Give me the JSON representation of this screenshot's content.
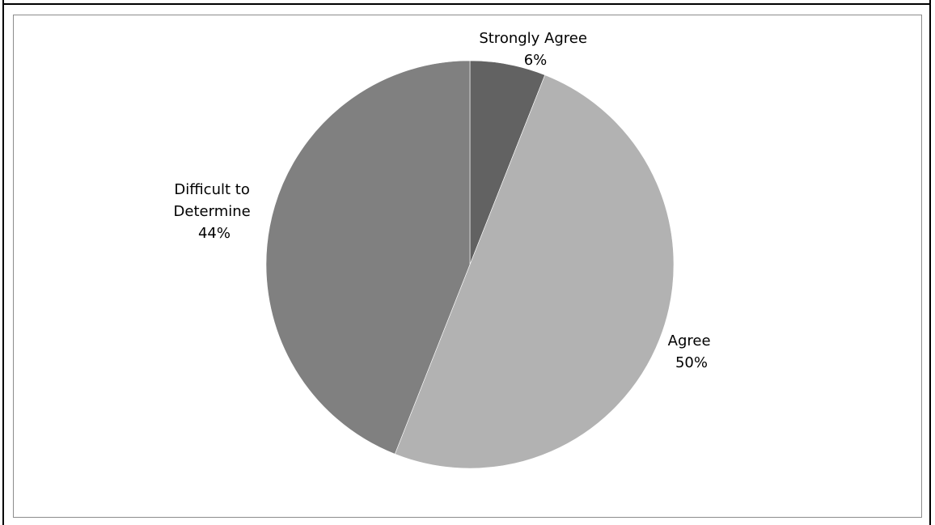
{
  "chart_data": {
    "type": "pie",
    "start_angle_deg": 0,
    "direction": "clockwise",
    "slices": [
      {
        "label_lines": [
          "Strongly Agree"
        ],
        "percent_label": "6%",
        "value": 6,
        "color": "#626262"
      },
      {
        "label_lines": [
          "Agree"
        ],
        "percent_label": "50%",
        "value": 50,
        "color": "#b2b2b2"
      },
      {
        "label_lines": [
          "Difficult to",
          "Determine"
        ],
        "percent_label": "44%",
        "value": 44,
        "color": "#808080"
      }
    ]
  }
}
